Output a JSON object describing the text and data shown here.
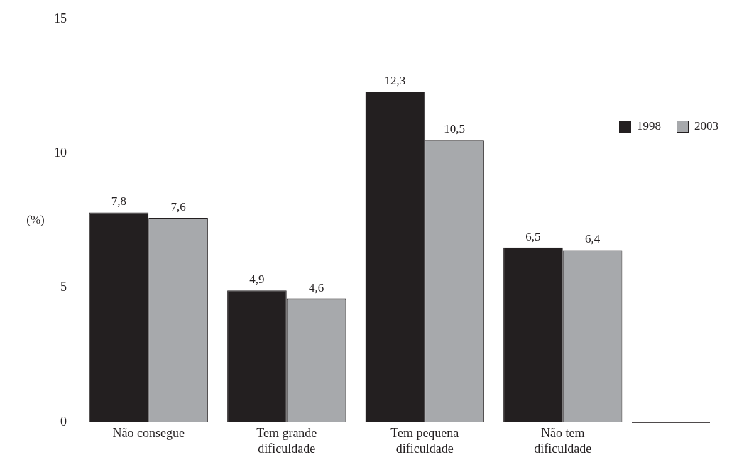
{
  "chart_data": {
    "type": "bar",
    "ylabel": "(%)",
    "categories": [
      "Não consegue",
      "Tem grande dificuldade",
      "Tem pequena dificuldade",
      "Não tem dificuldade"
    ],
    "series": [
      {
        "name": "1998",
        "color": "#231f20",
        "values": [
          7.8,
          4.9,
          12.3,
          6.5
        ],
        "value_labels": [
          "7,8",
          "4,9",
          "12,3",
          "6,5"
        ]
      },
      {
        "name": "2003",
        "color": "#a7a9ac",
        "values": [
          7.6,
          4.6,
          10.5,
          6.4
        ],
        "value_labels": [
          "7,6",
          "4,6",
          "10,5",
          "6,4"
        ]
      }
    ],
    "ylim": [
      0,
      15
    ],
    "yticks": [
      0,
      5,
      10,
      15
    ],
    "grid": false,
    "legend": "right"
  }
}
